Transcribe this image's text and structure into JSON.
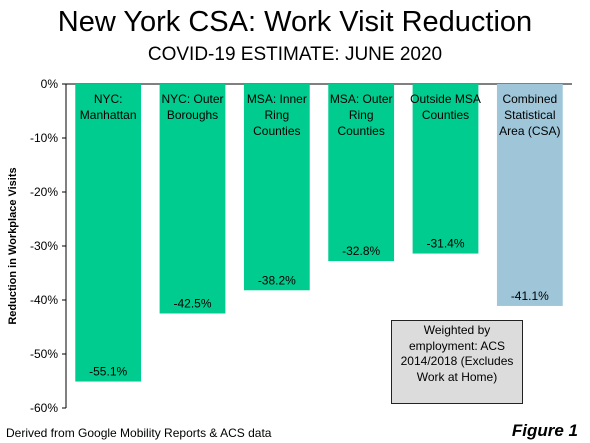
{
  "chart_data": {
    "type": "bar",
    "title": "New York CSA: Work Visit Reduction",
    "subtitle": "COVID-19 ESTIMATE: JUNE 2020",
    "ylabel": "Reduction in Workplace Visits",
    "xlabel": "",
    "ylim": [
      -60,
      0
    ],
    "yticks": [
      0,
      -10,
      -20,
      -30,
      -40,
      -50,
      -60
    ],
    "ytick_labels": [
      "0%",
      "-10%",
      "-20%",
      "-30%",
      "-40%",
      "-50%",
      "-60%"
    ],
    "categories": [
      [
        "NYC:",
        "Manhattan"
      ],
      [
        "NYC: Outer",
        "Boroughs"
      ],
      [
        "MSA: Inner",
        "Ring",
        "Counties"
      ],
      [
        "MSA: Outer",
        "Ring",
        "Counties"
      ],
      [
        "Outside MSA",
        "Counties"
      ],
      [
        "Combined",
        "Statistical",
        "Area (CSA)"
      ]
    ],
    "values": [
      -55.1,
      -42.5,
      -38.2,
      -32.8,
      -31.4,
      -41.1
    ],
    "data_labels": [
      "-55.1%",
      "-42.5%",
      "-38.2%",
      "-32.8%",
      "-31.4%",
      "-41.1%"
    ],
    "colors": [
      "#00cc8f",
      "#00cc8f",
      "#00cc8f",
      "#00cc8f",
      "#00cc8f",
      "#9ec5d8"
    ],
    "grid": false,
    "legend": "none"
  },
  "note_lines": [
    "Weighted by",
    "employment: ACS",
    "2014/2018 (Excludes",
    "Work at Home)"
  ],
  "source": "Derived from Google Mobility Reports & ACS data",
  "figure_label": "Figure 1"
}
